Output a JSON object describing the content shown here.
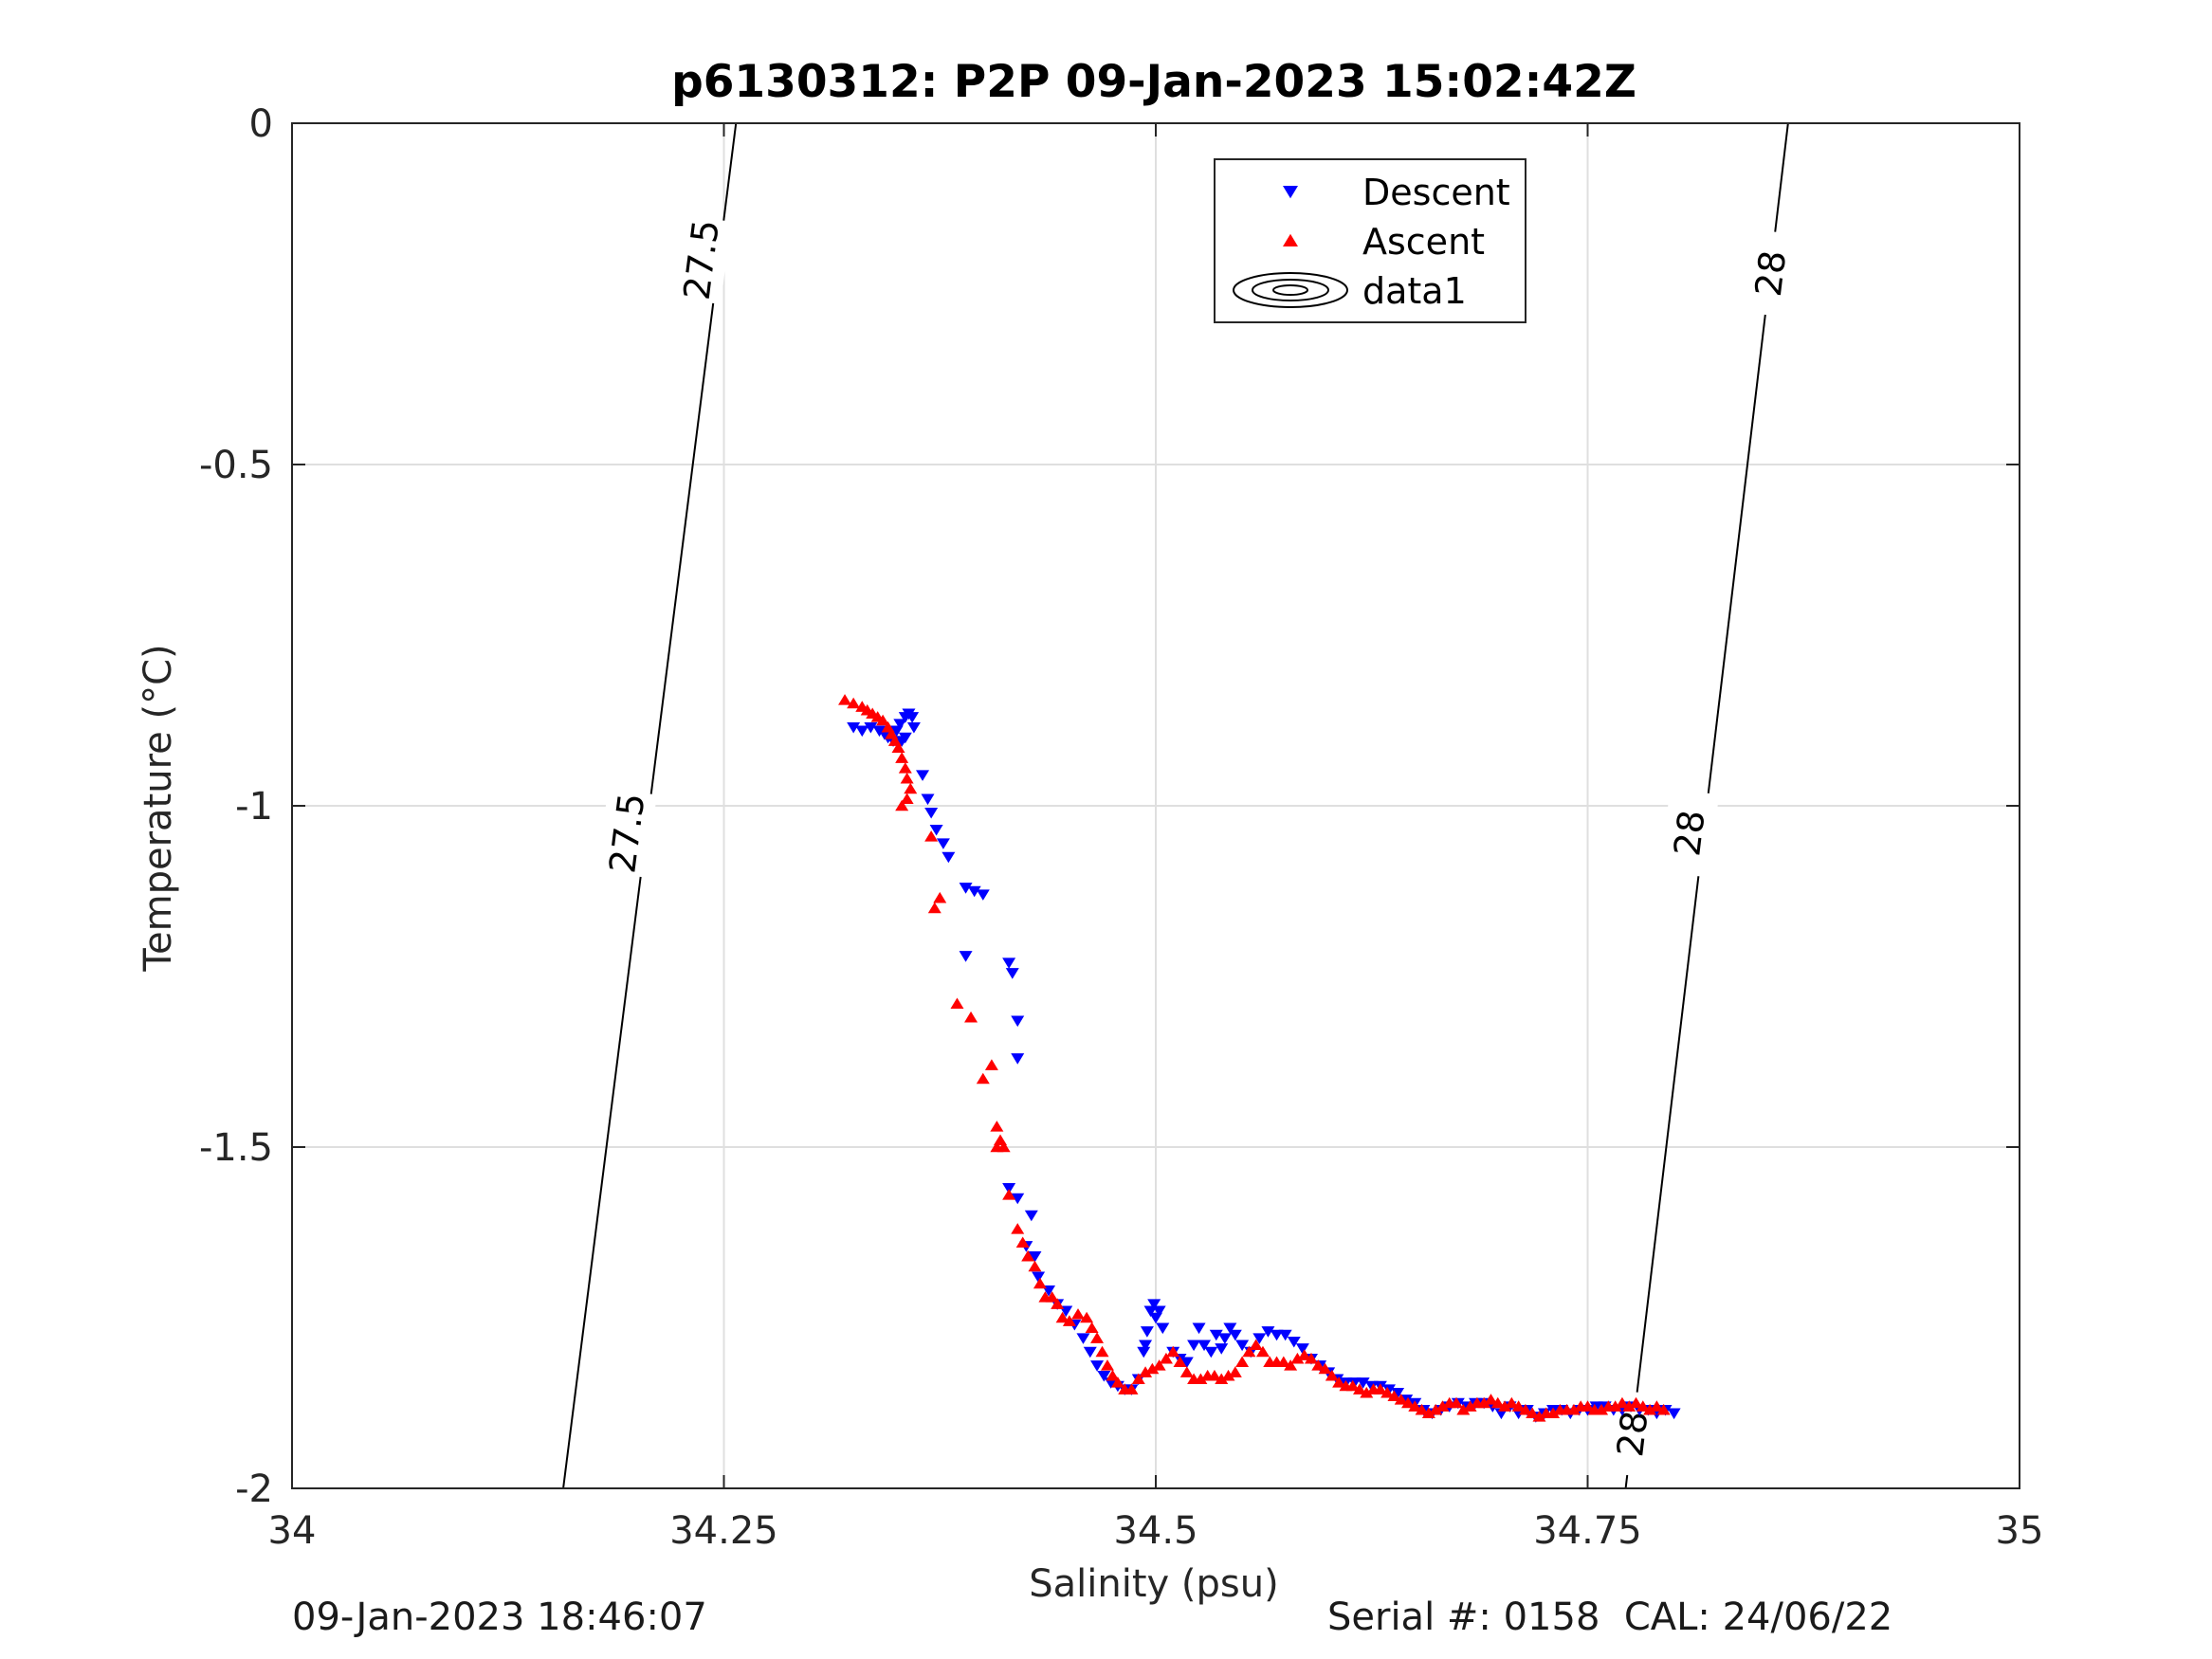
{
  "chart_data": {
    "type": "scatter",
    "title": "p6130312: P2P 09-Jan-2023 15:02:42Z",
    "xlabel": "Salinity (psu)",
    "ylabel": "Temperature (°C)",
    "xlim": [
      34,
      35
    ],
    "ylim": [
      -2,
      0
    ],
    "x_ticks": [
      34,
      34.25,
      34.5,
      34.75,
      35
    ],
    "x_tick_labels": [
      "34",
      "34.25",
      "34.5",
      "34.75",
      "35"
    ],
    "y_ticks": [
      0,
      -0.5,
      -1,
      -1.5,
      -2
    ],
    "y_tick_labels": [
      "0",
      "-0.5",
      "-1",
      "-1.5",
      "-2"
    ],
    "grid": true,
    "legend_position": "top-right",
    "series": [
      {
        "name": "Descent",
        "marker": "triangle-down",
        "color": "#0000ff",
        "points": [
          [
            34.325,
            -0.885
          ],
          [
            34.33,
            -0.89
          ],
          [
            34.335,
            -0.885
          ],
          [
            34.34,
            -0.89
          ],
          [
            34.345,
            -0.9
          ],
          [
            34.35,
            -0.89
          ],
          [
            34.352,
            -0.88
          ],
          [
            34.355,
            -0.87
          ],
          [
            34.357,
            -0.865
          ],
          [
            34.359,
            -0.87
          ],
          [
            34.36,
            -0.885
          ],
          [
            34.353,
            -0.905
          ],
          [
            34.348,
            -0.905
          ],
          [
            34.343,
            -0.895
          ],
          [
            34.355,
            -0.9
          ],
          [
            34.365,
            -0.955
          ],
          [
            34.368,
            -0.99
          ],
          [
            34.37,
            -1.01
          ],
          [
            34.373,
            -1.035
          ],
          [
            34.377,
            -1.055
          ],
          [
            34.38,
            -1.075
          ],
          [
            34.39,
            -1.12
          ],
          [
            34.395,
            -1.125
          ],
          [
            34.4,
            -1.13
          ],
          [
            34.39,
            -1.22
          ],
          [
            34.415,
            -1.23
          ],
          [
            34.417,
            -1.245
          ],
          [
            34.42,
            -1.315
          ],
          [
            34.42,
            -1.37
          ],
          [
            34.415,
            -1.56
          ],
          [
            34.42,
            -1.575
          ],
          [
            34.428,
            -1.6
          ],
          [
            34.425,
            -1.645
          ],
          [
            34.43,
            -1.66
          ],
          [
            34.432,
            -1.69
          ],
          [
            34.438,
            -1.71
          ],
          [
            34.443,
            -1.73
          ],
          [
            34.448,
            -1.74
          ],
          [
            34.453,
            -1.76
          ],
          [
            34.458,
            -1.78
          ],
          [
            34.462,
            -1.8
          ],
          [
            34.466,
            -1.82
          ],
          [
            34.47,
            -1.835
          ],
          [
            34.474,
            -1.845
          ],
          [
            34.478,
            -1.85
          ],
          [
            34.482,
            -1.855
          ],
          [
            34.486,
            -1.855
          ],
          [
            34.49,
            -1.84
          ],
          [
            34.493,
            -1.8
          ],
          [
            34.495,
            -1.77
          ],
          [
            34.497,
            -1.74
          ],
          [
            34.499,
            -1.73
          ],
          [
            34.5,
            -1.75
          ],
          [
            34.502,
            -1.74
          ],
          [
            34.504,
            -1.765
          ],
          [
            34.494,
            -1.79
          ],
          [
            34.51,
            -1.8
          ],
          [
            34.514,
            -1.81
          ],
          [
            34.518,
            -1.815
          ],
          [
            34.522,
            -1.79
          ],
          [
            34.525,
            -1.765
          ],
          [
            34.528,
            -1.79
          ],
          [
            34.532,
            -1.8
          ],
          [
            34.535,
            -1.775
          ],
          [
            34.538,
            -1.795
          ],
          [
            34.54,
            -1.78
          ],
          [
            34.543,
            -1.765
          ],
          [
            34.546,
            -1.775
          ],
          [
            34.55,
            -1.79
          ],
          [
            34.555,
            -1.8
          ],
          [
            34.56,
            -1.78
          ],
          [
            34.565,
            -1.77
          ],
          [
            34.57,
            -1.775
          ],
          [
            34.575,
            -1.775
          ],
          [
            34.58,
            -1.785
          ],
          [
            34.585,
            -1.795
          ],
          [
            34.59,
            -1.81
          ],
          [
            34.595,
            -1.82
          ],
          [
            34.6,
            -1.83
          ],
          [
            34.605,
            -1.84
          ],
          [
            34.61,
            -1.845
          ],
          [
            34.615,
            -1.845
          ],
          [
            34.62,
            -1.845
          ],
          [
            34.625,
            -1.85
          ],
          [
            34.63,
            -1.85
          ],
          [
            34.635,
            -1.855
          ],
          [
            34.64,
            -1.86
          ],
          [
            34.645,
            -1.87
          ],
          [
            34.65,
            -1.875
          ],
          [
            34.655,
            -1.885
          ],
          [
            34.66,
            -1.89
          ],
          [
            34.665,
            -1.885
          ],
          [
            34.67,
            -1.88
          ],
          [
            34.675,
            -1.875
          ],
          [
            34.68,
            -1.88
          ],
          [
            34.685,
            -1.875
          ],
          [
            34.69,
            -1.875
          ],
          [
            34.695,
            -1.88
          ],
          [
            34.7,
            -1.89
          ],
          [
            34.705,
            -1.88
          ],
          [
            34.71,
            -1.89
          ],
          [
            34.715,
            -1.885
          ],
          [
            34.72,
            -1.895
          ],
          [
            34.725,
            -1.89
          ],
          [
            34.73,
            -1.885
          ],
          [
            34.735,
            -1.885
          ],
          [
            34.74,
            -1.89
          ],
          [
            34.745,
            -1.885
          ],
          [
            34.75,
            -1.885
          ],
          [
            34.755,
            -1.88
          ],
          [
            34.76,
            -1.88
          ],
          [
            34.765,
            -1.885
          ],
          [
            34.77,
            -1.885
          ],
          [
            34.775,
            -1.88
          ],
          [
            34.78,
            -1.885
          ],
          [
            34.785,
            -1.885
          ],
          [
            34.79,
            -1.89
          ],
          [
            34.795,
            -1.885
          ],
          [
            34.8,
            -1.89
          ]
        ]
      },
      {
        "name": "Ascent",
        "marker": "triangle-up",
        "color": "#ff0000",
        "points": [
          [
            34.32,
            -0.845
          ],
          [
            34.325,
            -0.85
          ],
          [
            34.33,
            -0.855
          ],
          [
            34.333,
            -0.86
          ],
          [
            34.336,
            -0.865
          ],
          [
            34.339,
            -0.87
          ],
          [
            34.342,
            -0.875
          ],
          [
            34.345,
            -0.885
          ],
          [
            34.347,
            -0.895
          ],
          [
            34.349,
            -0.905
          ],
          [
            34.351,
            -0.915
          ],
          [
            34.353,
            -0.93
          ],
          [
            34.355,
            -0.945
          ],
          [
            34.356,
            -0.96
          ],
          [
            34.358,
            -0.975
          ],
          [
            34.356,
            -0.99
          ],
          [
            34.353,
            -1.0
          ],
          [
            34.37,
            -1.045
          ],
          [
            34.372,
            -1.15
          ],
          [
            34.375,
            -1.135
          ],
          [
            34.385,
            -1.29
          ],
          [
            34.393,
            -1.31
          ],
          [
            34.4,
            -1.4
          ],
          [
            34.405,
            -1.38
          ],
          [
            34.408,
            -1.47
          ],
          [
            34.41,
            -1.49
          ],
          [
            34.412,
            -1.5
          ],
          [
            34.408,
            -1.5
          ],
          [
            34.415,
            -1.57
          ],
          [
            34.42,
            -1.62
          ],
          [
            34.423,
            -1.64
          ],
          [
            34.426,
            -1.66
          ],
          [
            34.43,
            -1.675
          ],
          [
            34.433,
            -1.7
          ],
          [
            34.436,
            -1.72
          ],
          [
            34.44,
            -1.72
          ],
          [
            34.443,
            -1.73
          ],
          [
            34.446,
            -1.75
          ],
          [
            34.45,
            -1.755
          ],
          [
            34.455,
            -1.745
          ],
          [
            34.46,
            -1.75
          ],
          [
            34.463,
            -1.765
          ],
          [
            34.466,
            -1.78
          ],
          [
            34.469,
            -1.8
          ],
          [
            34.472,
            -1.82
          ],
          [
            34.475,
            -1.835
          ],
          [
            34.478,
            -1.845
          ],
          [
            34.482,
            -1.855
          ],
          [
            34.486,
            -1.855
          ],
          [
            34.49,
            -1.84
          ],
          [
            34.494,
            -1.83
          ],
          [
            34.498,
            -1.825
          ],
          [
            34.502,
            -1.82
          ],
          [
            34.506,
            -1.81
          ],
          [
            34.51,
            -1.8
          ],
          [
            34.514,
            -1.815
          ],
          [
            34.518,
            -1.83
          ],
          [
            34.522,
            -1.84
          ],
          [
            34.526,
            -1.84
          ],
          [
            34.53,
            -1.835
          ],
          [
            34.534,
            -1.835
          ],
          [
            34.538,
            -1.84
          ],
          [
            34.542,
            -1.835
          ],
          [
            34.546,
            -1.83
          ],
          [
            34.55,
            -1.815
          ],
          [
            34.554,
            -1.8
          ],
          [
            34.558,
            -1.79
          ],
          [
            34.562,
            -1.8
          ],
          [
            34.566,
            -1.815
          ],
          [
            34.57,
            -1.815
          ],
          [
            34.574,
            -1.815
          ],
          [
            34.578,
            -1.82
          ],
          [
            34.582,
            -1.81
          ],
          [
            34.586,
            -1.805
          ],
          [
            34.59,
            -1.81
          ],
          [
            34.594,
            -1.82
          ],
          [
            34.598,
            -1.825
          ],
          [
            34.602,
            -1.835
          ],
          [
            34.606,
            -1.845
          ],
          [
            34.61,
            -1.85
          ],
          [
            34.614,
            -1.85
          ],
          [
            34.618,
            -1.855
          ],
          [
            34.622,
            -1.86
          ],
          [
            34.626,
            -1.855
          ],
          [
            34.63,
            -1.855
          ],
          [
            34.634,
            -1.86
          ],
          [
            34.638,
            -1.865
          ],
          [
            34.642,
            -1.87
          ],
          [
            34.646,
            -1.875
          ],
          [
            34.65,
            -1.88
          ],
          [
            34.654,
            -1.885
          ],
          [
            34.658,
            -1.89
          ],
          [
            34.662,
            -1.885
          ],
          [
            34.666,
            -1.88
          ],
          [
            34.67,
            -1.875
          ],
          [
            34.674,
            -1.875
          ],
          [
            34.678,
            -1.885
          ],
          [
            34.682,
            -1.88
          ],
          [
            34.686,
            -1.875
          ],
          [
            34.69,
            -1.875
          ],
          [
            34.694,
            -1.87
          ],
          [
            34.698,
            -1.875
          ],
          [
            34.702,
            -1.88
          ],
          [
            34.706,
            -1.875
          ],
          [
            34.71,
            -1.88
          ],
          [
            34.714,
            -1.885
          ],
          [
            34.718,
            -1.89
          ],
          [
            34.722,
            -1.895
          ],
          [
            34.726,
            -1.89
          ],
          [
            34.73,
            -1.89
          ],
          [
            34.734,
            -1.885
          ],
          [
            34.738,
            -1.885
          ],
          [
            34.742,
            -1.885
          ],
          [
            34.746,
            -1.88
          ],
          [
            34.75,
            -1.88
          ],
          [
            34.754,
            -1.885
          ],
          [
            34.758,
            -1.885
          ],
          [
            34.762,
            -1.88
          ],
          [
            34.766,
            -1.88
          ],
          [
            34.77,
            -1.875
          ],
          [
            34.774,
            -1.88
          ],
          [
            34.778,
            -1.875
          ],
          [
            34.782,
            -1.88
          ],
          [
            34.786,
            -1.885
          ],
          [
            34.79,
            -1.88
          ],
          [
            34.794,
            -1.885
          ]
        ]
      },
      {
        "name": "data1",
        "marker": "contour",
        "color": "#000000",
        "contours": [
          {
            "level": "27.5",
            "line": [
              [
                34.257,
                0
              ],
              [
                34.157,
                -2
              ]
            ],
            "labels": [
              {
                "at": [
                  34.237,
                  -0.2
                ],
                "text": "27.5"
              },
              {
                "at": [
                  34.194,
                  -1.04
                ],
                "text": "27.5"
              }
            ]
          },
          {
            "level": "28",
            "line": [
              [
                34.866,
                0
              ],
              [
                34.772,
                -2
              ]
            ],
            "labels": [
              {
                "at": [
                  34.856,
                  -0.22
                ],
                "text": "28"
              },
              {
                "at": [
                  34.809,
                  -1.04
                ],
                "text": "28"
              },
              {
                "at": [
                  34.776,
                  -1.92
                ],
                "text": "28"
              }
            ]
          }
        ]
      }
    ]
  },
  "footer": {
    "left": "09-Jan-2023 18:46:07",
    "right": "Serial #: 0158  CAL: 24/06/22"
  }
}
